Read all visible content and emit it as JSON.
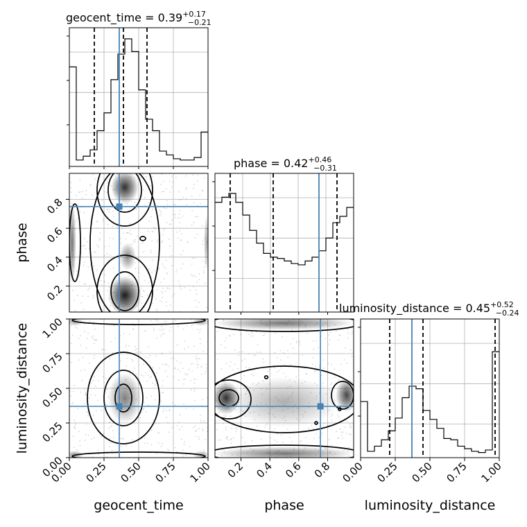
{
  "chart_data": {
    "type": "corner",
    "parameters": [
      "geocent_time",
      "phase",
      "luminosity_distance"
    ],
    "truths": [
      0.36,
      0.75,
      0.37
    ],
    "colors": {
      "truth": "#4682b4",
      "hist": "#000000",
      "grid": "#b0b0b0",
      "scatter": "#888888"
    },
    "grid": true,
    "titles": [
      {
        "param": "geocent_time = 0.39",
        "sup": "+0.17",
        "sub": "−0.21"
      },
      {
        "param": "phase = 0.42",
        "sup": "+0.46",
        "sub": "−0.31"
      },
      {
        "param": "luminosity_distance = 0.45",
        "sup": "+0.52",
        "sub": "−0.24"
      }
    ],
    "xlabels": [
      "geocent_time",
      "phase",
      "luminosity_distance"
    ],
    "ylabels": [
      "phase",
      "luminosity_distance"
    ],
    "ranges": [
      [
        0.0,
        1.0
      ],
      [
        0.02,
        0.98
      ],
      [
        0.0,
        1.0
      ]
    ],
    "ticks": {
      "geocent_time": {
        "values": [
          0.0,
          0.25,
          0.5,
          0.75,
          1.0
        ],
        "labels": [
          "0.00",
          "0.25",
          "0.50",
          "0.75",
          "1.00"
        ]
      },
      "phase_x": {
        "values": [
          0.2,
          0.4,
          0.6,
          0.8
        ],
        "labels": [
          "0.2",
          "0.4",
          "0.6",
          "0.8"
        ]
      },
      "phase_y": {
        "values": [
          0.2,
          0.4,
          0.6,
          0.8
        ],
        "labels": [
          "0.2",
          "0.4",
          "0.6",
          "0.8"
        ]
      },
      "luminosity_distance": {
        "values": [
          0.0,
          0.25,
          0.5,
          0.75,
          1.0
        ],
        "labels": [
          "0.00",
          "0.25",
          "0.50",
          "0.75",
          "1.00"
        ]
      }
    },
    "histograms": [
      {
        "param": "geocent_time",
        "quantiles": [
          0.18,
          0.39,
          0.56
        ],
        "bins": [
          0.0,
          0.05,
          0.1,
          0.15,
          0.2,
          0.25,
          0.3,
          0.35,
          0.4,
          0.45,
          0.5,
          0.55,
          0.6,
          0.65,
          0.7,
          0.75,
          0.8,
          0.85,
          0.9,
          0.95,
          1.0
        ],
        "values": [
          0.78,
          0.05,
          0.08,
          0.13,
          0.28,
          0.42,
          0.68,
          0.88,
          1.0,
          0.9,
          0.6,
          0.37,
          0.28,
          0.12,
          0.09,
          0.06,
          0.05,
          0.05,
          0.07,
          0.27
        ]
      },
      {
        "param": "phase",
        "quantiles": [
          0.11,
          0.42,
          0.88
        ],
        "bins": [
          0.0,
          0.05,
          0.1,
          0.15,
          0.2,
          0.25,
          0.3,
          0.35,
          0.4,
          0.45,
          0.5,
          0.55,
          0.6,
          0.65,
          0.7,
          0.75,
          0.8,
          0.85,
          0.9,
          0.95,
          1.0
        ],
        "values": [
          0.86,
          0.9,
          0.93,
          0.86,
          0.76,
          0.64,
          0.54,
          0.46,
          0.43,
          0.42,
          0.4,
          0.38,
          0.37,
          0.4,
          0.43,
          0.48,
          0.58,
          0.7,
          0.75,
          0.82
        ]
      },
      {
        "param": "luminosity_distance",
        "quantiles": [
          0.21,
          0.45,
          0.97
        ],
        "bins": [
          0.0,
          0.05,
          0.1,
          0.15,
          0.2,
          0.25,
          0.3,
          0.35,
          0.4,
          0.45,
          0.5,
          0.55,
          0.6,
          0.65,
          0.7,
          0.75,
          0.8,
          0.85,
          0.9,
          0.95,
          1.0
        ],
        "values": [
          0.44,
          0.05,
          0.09,
          0.14,
          0.21,
          0.31,
          0.47,
          0.56,
          0.54,
          0.37,
          0.3,
          0.23,
          0.15,
          0.14,
          0.09,
          0.07,
          0.05,
          0.04,
          0.06,
          0.83
        ]
      }
    ],
    "scatter_points_per_panel": 1600,
    "contour_levels": 4
  }
}
